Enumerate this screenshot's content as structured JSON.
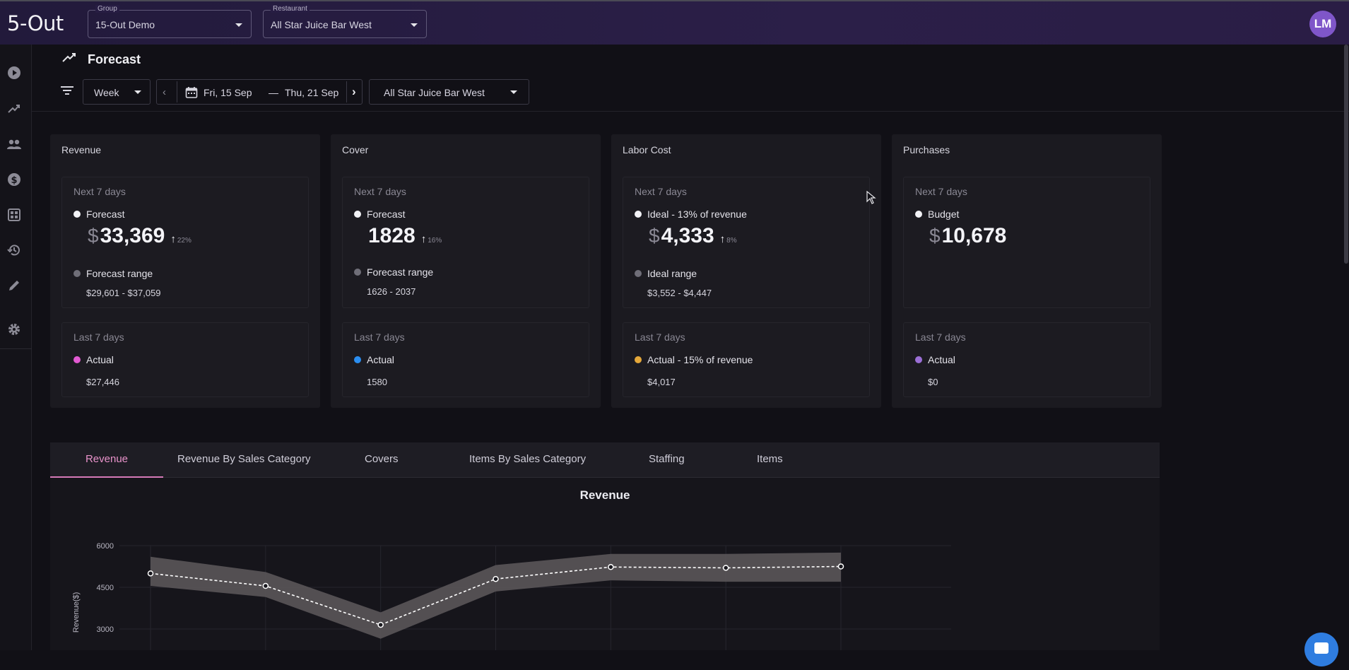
{
  "app": {
    "logo": "5-Out",
    "avatar_initials": "LM"
  },
  "header": {
    "group": {
      "caption": "Group",
      "value": "15-Out Demo"
    },
    "restaurant": {
      "caption": "Restaurant",
      "value": "All Star Juice Bar West"
    }
  },
  "sidebar": {
    "items": [
      {
        "icon": "play-circle-icon"
      },
      {
        "icon": "trending-up-icon"
      },
      {
        "icon": "people-icon"
      },
      {
        "icon": "dollar-circle-icon"
      },
      {
        "icon": "dashboard-grid-icon"
      },
      {
        "icon": "history-icon"
      },
      {
        "icon": "pencil-icon"
      },
      {
        "icon": "gear-icon"
      }
    ]
  },
  "page": {
    "title": "Forecast"
  },
  "filters": {
    "period": "Week",
    "date_start": "Fri, 15 Sep",
    "date_sep": "—",
    "date_end": "Thu, 21 Sep",
    "restaurant": "All Star Juice Bar West"
  },
  "cards": [
    {
      "title": "Revenue",
      "next_label": "Next 7 days",
      "primary_label": "Forecast",
      "primary_currency": "$",
      "primary_value": "33,369",
      "change": "22%",
      "range_label": "Forecast range",
      "range_value": "$29,601 - $37,059",
      "last_label": "Last 7 days",
      "actual_label": "Actual",
      "actual_value": "$27,446",
      "actual_color": "#e25ad2"
    },
    {
      "title": "Cover",
      "next_label": "Next 7 days",
      "primary_label": "Forecast",
      "primary_currency": "",
      "primary_value": "1828",
      "change": "16%",
      "range_label": "Forecast range",
      "range_value": "1626 - 2037",
      "last_label": "Last 7 days",
      "actual_label": "Actual",
      "actual_value": "1580",
      "actual_color": "#2b8ef0"
    },
    {
      "title": "Labor Cost",
      "next_label": "Next 7 days",
      "primary_label": "Ideal - 13% of revenue",
      "primary_currency": "$",
      "primary_value": "4,333",
      "change": "8%",
      "range_label": "Ideal range",
      "range_value": "$3,552 - $4,447",
      "last_label": "Last 7 days",
      "actual_label": "Actual - 15% of revenue",
      "actual_value": "$4,017",
      "actual_color": "#e5a83a"
    },
    {
      "title": "Purchases",
      "next_label": "Next 7 days",
      "primary_label": "Budget",
      "primary_currency": "$",
      "primary_value": "10,678",
      "change": "",
      "range_label": "",
      "range_value": "",
      "last_label": "Last 7 days",
      "actual_label": "Actual",
      "actual_value": "$0",
      "actual_color": "#9b6fd6"
    }
  ],
  "tabs": [
    "Revenue",
    "Revenue By Sales Category",
    "Covers",
    "Items By Sales Category",
    "Staffing",
    "Items"
  ],
  "chart_data": {
    "type": "line",
    "title": "Revenue",
    "ylabel": "Revenue($)",
    "xlabel": "",
    "ylim": [
      2000,
      6000
    ],
    "yticks": [
      6000,
      4500,
      3000
    ],
    "x": [
      1,
      2,
      3,
      4,
      5,
      6,
      7
    ],
    "series": [
      {
        "values": [
          5000,
          4550,
          3150,
          4800,
          5230,
          5200,
          5250
        ]
      }
    ],
    "band": {
      "low": [
        4550,
        4150,
        2650,
        4350,
        4750,
        4700,
        4700
      ],
      "high": [
        5600,
        5050,
        3600,
        5300,
        5700,
        5700,
        5750
      ]
    }
  }
}
